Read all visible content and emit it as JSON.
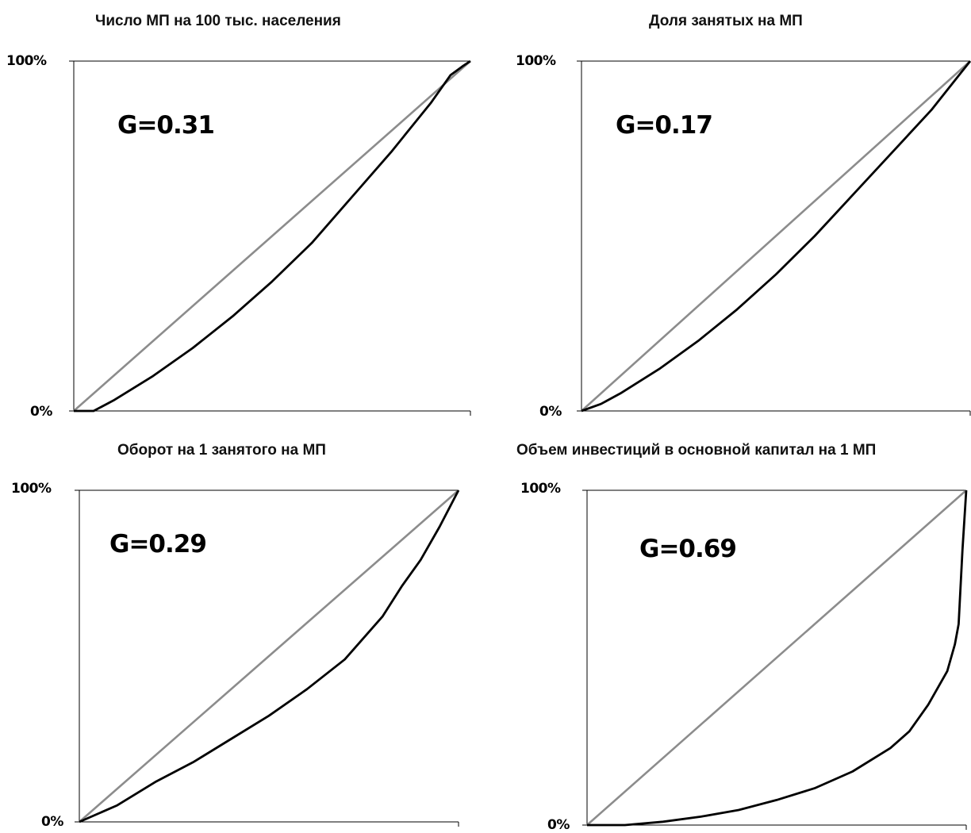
{
  "colors": {
    "equality_line": "#8c8c8c",
    "lorenz_curve": "#000000",
    "frame": "#000000"
  },
  "chart_data": [
    {
      "type": "line",
      "title": "Число МП на 100 тыс. населения",
      "annotation": "G=0.31",
      "y_tick_top": "100%",
      "y_tick_bottom": "0%",
      "xlim": [
        0,
        1
      ],
      "ylim": [
        0,
        1
      ],
      "grid": false,
      "series": [
        {
          "role": "equality",
          "x": [
            0,
            1
          ],
          "y": [
            0,
            1
          ]
        },
        {
          "role": "lorenz",
          "x": [
            0,
            0.05,
            0.1,
            0.2,
            0.3,
            0.4,
            0.5,
            0.6,
            0.7,
            0.8,
            0.85,
            0.9,
            0.95,
            0.98,
            1.0
          ],
          "y": [
            0,
            0.0,
            0.03,
            0.1,
            0.18,
            0.27,
            0.37,
            0.48,
            0.61,
            0.74,
            0.81,
            0.88,
            0.96,
            0.985,
            1.0
          ]
        }
      ]
    },
    {
      "type": "line",
      "title": "Доля занятых на МП",
      "annotation": "G=0.17",
      "y_tick_top": "100%",
      "y_tick_bottom": "0%",
      "xlim": [
        0,
        1
      ],
      "ylim": [
        0,
        1
      ],
      "grid": false,
      "series": [
        {
          "role": "equality",
          "x": [
            0,
            1
          ],
          "y": [
            0,
            1
          ]
        },
        {
          "role": "lorenz",
          "x": [
            0,
            0.05,
            0.1,
            0.2,
            0.3,
            0.4,
            0.5,
            0.6,
            0.7,
            0.8,
            0.9,
            1.0
          ],
          "y": [
            0,
            0.02,
            0.05,
            0.12,
            0.2,
            0.29,
            0.39,
            0.5,
            0.62,
            0.74,
            0.86,
            1.0
          ]
        }
      ]
    },
    {
      "type": "line",
      "title": "Оборот на 1 занятого на МП",
      "annotation": "G=0.29",
      "y_tick_top": "100%",
      "y_tick_bottom": "0%",
      "xlim": [
        0,
        1
      ],
      "ylim": [
        0,
        1
      ],
      "grid": false,
      "series": [
        {
          "role": "equality",
          "x": [
            0,
            1
          ],
          "y": [
            0,
            1
          ]
        },
        {
          "role": "lorenz",
          "x": [
            0,
            0.1,
            0.2,
            0.3,
            0.4,
            0.5,
            0.6,
            0.7,
            0.8,
            0.85,
            0.9,
            0.95,
            1.0
          ],
          "y": [
            0,
            0.05,
            0.12,
            0.18,
            0.25,
            0.32,
            0.4,
            0.49,
            0.62,
            0.71,
            0.79,
            0.89,
            1.0
          ]
        }
      ]
    },
    {
      "type": "line",
      "title": "Объем инвестиций в основной капитал на 1 МП",
      "annotation": "G=0.69",
      "y_tick_top": "100%",
      "y_tick_bottom": "0%",
      "xlim": [
        0,
        1
      ],
      "ylim": [
        0,
        1
      ],
      "grid": false,
      "series": [
        {
          "role": "equality",
          "x": [
            0,
            1
          ],
          "y": [
            0,
            1
          ]
        },
        {
          "role": "lorenz",
          "x": [
            0,
            0.1,
            0.2,
            0.3,
            0.4,
            0.5,
            0.6,
            0.7,
            0.8,
            0.85,
            0.9,
            0.95,
            0.97,
            0.98,
            0.99,
            1.0
          ],
          "y": [
            0,
            0.0,
            0.01,
            0.025,
            0.045,
            0.075,
            0.11,
            0.16,
            0.23,
            0.28,
            0.36,
            0.46,
            0.54,
            0.6,
            0.82,
            1.0
          ]
        }
      ]
    }
  ]
}
